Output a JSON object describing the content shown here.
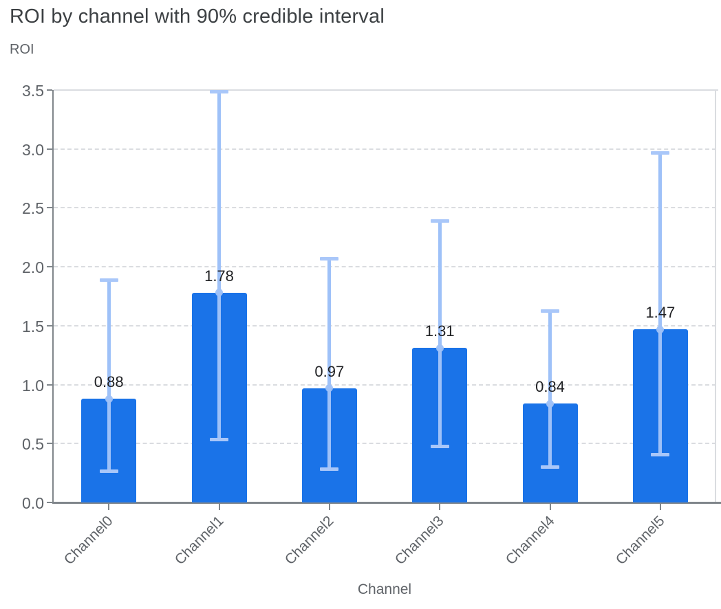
{
  "page": {
    "title": "ROI by channel with 90% credible interval",
    "y_axis_title": "ROI",
    "x_axis_title": "Channel"
  },
  "chart_data": {
    "type": "bar",
    "title": "ROI by channel with 90% credible interval",
    "xlabel": "Channel",
    "ylabel": "ROI",
    "categories": [
      "Channel0",
      "Channel1",
      "Channel2",
      "Channel3",
      "Channel4",
      "Channel5"
    ],
    "values": [
      0.88,
      1.78,
      0.97,
      1.31,
      0.84,
      1.47
    ],
    "bar_value_labels": [
      "0.88",
      "1.78",
      "0.97",
      "1.31",
      "0.84",
      "1.47"
    ],
    "error_interval_name": "90% credible interval",
    "error_low": [
      0.26,
      0.53,
      0.28,
      0.47,
      0.3,
      0.4
    ],
    "error_high": [
      1.89,
      3.49,
      2.07,
      2.39,
      1.63,
      2.97
    ],
    "ylim": [
      0,
      3.5
    ],
    "yticks": [
      0,
      0.5,
      1,
      1.5,
      2,
      2.5,
      3,
      3.5
    ],
    "ytick_labels": [
      "0.0",
      "0.5",
      "1.0",
      "1.5",
      "2.0",
      "2.5",
      "3.0",
      "3.5"
    ],
    "grid": "horizontal dashed, legend none",
    "colors": {
      "bar": "#1A73E8",
      "error_bar": "#9EC1F8",
      "error_cap": "#A9C7F9",
      "marker_dot": "#9EC1F8",
      "title_text": "#3C4043",
      "axis_text": "#5F6368",
      "value_label_text": "#202124",
      "gridline": "#DADCE0",
      "axis_line": "#80868B"
    }
  }
}
